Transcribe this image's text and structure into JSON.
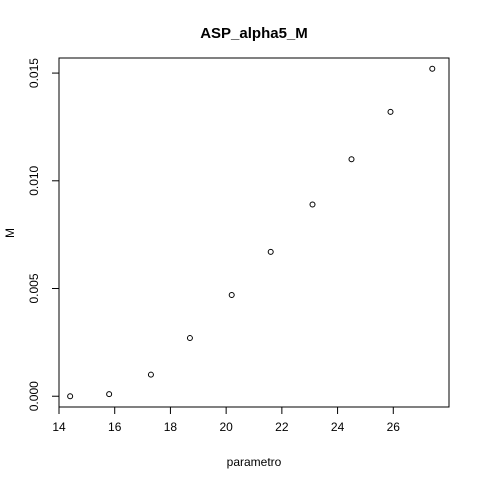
{
  "chart_data": {
    "type": "scatter",
    "title": "ASP_alpha5_M",
    "xlabel": "parametro",
    "ylabel": "M",
    "xlim": [
      14.0,
      28.0
    ],
    "ylim": [
      -0.0005,
      0.0157
    ],
    "xticks": [
      14,
      16,
      18,
      20,
      22,
      24,
      26
    ],
    "yticks": [
      0.0,
      0.005,
      0.01,
      0.015
    ],
    "ytick_labels": [
      "0.000",
      "0.005",
      "0.010",
      "0.015"
    ],
    "grid": false,
    "legend": "none",
    "marker": "open-circle",
    "x": [
      14.4,
      15.8,
      17.3,
      18.7,
      20.2,
      21.6,
      23.1,
      24.5,
      25.9,
      27.4
    ],
    "y": [
      0.0,
      0.0001,
      0.001,
      0.0027,
      0.0047,
      0.0067,
      0.0089,
      0.011,
      0.0132,
      0.0152
    ]
  }
}
